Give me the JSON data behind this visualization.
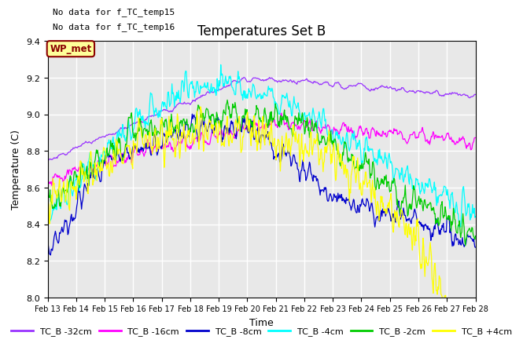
{
  "title": "Temperatures Set B",
  "xlabel": "Time",
  "ylabel": "Temperature (C)",
  "ylim": [
    8.0,
    9.4
  ],
  "xlim": [
    0,
    15
  ],
  "yticks": [
    8.0,
    8.2,
    8.4,
    8.6,
    8.8,
    9.0,
    9.2,
    9.4
  ],
  "xtick_labels": [
    "Feb 13",
    "Feb 14",
    "Feb 15",
    "Feb 16",
    "Feb 17",
    "Feb 18",
    "Feb 19",
    "Feb 20",
    "Feb 21",
    "Feb 22",
    "Feb 23",
    "Feb 24",
    "Feb 25",
    "Feb 26",
    "Feb 27",
    "Feb 28"
  ],
  "note1": "No data for f_TC_temp15",
  "note2": "No data for f_TC_temp16",
  "wp_met_label": "WP_met",
  "legend_labels": [
    "TC_B -32cm",
    "TC_B -16cm",
    "TC_B -8cm",
    "TC_B -4cm",
    "TC_B -2cm",
    "TC_B +4cm"
  ],
  "line_colors": [
    "#9933ff",
    "#ff00ff",
    "#0000cc",
    "#00ffff",
    "#00cc00",
    "#ffff00"
  ],
  "background_color": "#e8e8e8",
  "grid_color": "#ffffff",
  "title_fontsize": 12,
  "label_fontsize": 9,
  "tick_fontsize": 8
}
